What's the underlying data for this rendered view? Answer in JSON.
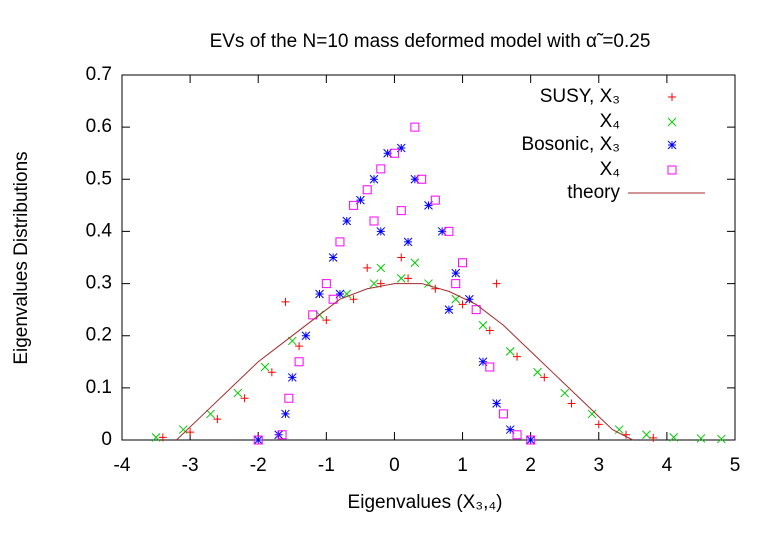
{
  "chart_data": {
    "type": "scatter",
    "title": "EVs of the N=10 mass deformed  model with α̃ =0.25",
    "x_label": "Eigenvalues  (X₃,₄)",
    "y_label": "Eigenvalues Distributions",
    "xlim": [
      -4,
      5
    ],
    "xticks": [
      -4,
      -3,
      -2,
      -1,
      0,
      1,
      2,
      3,
      4,
      5
    ],
    "ylim": [
      0,
      0.7
    ],
    "yticks": [
      0,
      0.1,
      0.2,
      0.3,
      0.4,
      0.5,
      0.6,
      0.7
    ],
    "grid": false,
    "legend": "top-right",
    "series": [
      {
        "name": "SUSY, X₃",
        "color": "#ff0000",
        "marker": "plus",
        "x": [
          -3.4,
          -3.0,
          -2.6,
          -2.2,
          -1.8,
          -1.4,
          -1.0,
          -0.6,
          -0.2,
          0.2,
          0.6,
          1.0,
          1.4,
          1.8,
          2.2,
          2.6,
          3.0,
          3.4,
          3.8,
          -1.6,
          1.5,
          -0.4,
          0.1
        ],
        "values": [
          0.005,
          0.015,
          0.04,
          0.08,
          0.13,
          0.18,
          0.23,
          0.27,
          0.3,
          0.31,
          0.29,
          0.26,
          0.21,
          0.16,
          0.12,
          0.07,
          0.03,
          0.01,
          0.004,
          0.265,
          0.3,
          0.33,
          0.35
        ]
      },
      {
        "name": "X₄",
        "color": "#00cc00",
        "marker": "cross",
        "x": [
          -3.5,
          -3.1,
          -2.7,
          -2.3,
          -1.9,
          -1.5,
          -1.1,
          -0.7,
          -0.3,
          0.1,
          0.5,
          0.9,
          1.3,
          1.7,
          2.1,
          2.5,
          2.9,
          3.3,
          3.7,
          4.1,
          4.5,
          4.8,
          -0.2,
          0.3
        ],
        "values": [
          0.005,
          0.02,
          0.05,
          0.09,
          0.14,
          0.19,
          0.24,
          0.28,
          0.3,
          0.31,
          0.3,
          0.27,
          0.22,
          0.17,
          0.13,
          0.09,
          0.05,
          0.02,
          0.01,
          0.005,
          0.003,
          0.002,
          0.33,
          0.34
        ]
      },
      {
        "name": "Bosonic, X₃",
        "color": "#0000ff",
        "marker": "star",
        "x": [
          -2.0,
          -1.7,
          -1.6,
          -1.5,
          -1.3,
          -1.1,
          -0.9,
          -0.7,
          -0.5,
          -0.3,
          -0.1,
          0.1,
          0.3,
          0.5,
          0.7,
          0.9,
          1.1,
          1.3,
          1.5,
          1.7,
          2.0,
          -0.2,
          0.2,
          0.8,
          -0.8
        ],
        "values": [
          0,
          0.01,
          0.05,
          0.12,
          0.2,
          0.28,
          0.35,
          0.42,
          0.46,
          0.5,
          0.55,
          0.56,
          0.5,
          0.45,
          0.4,
          0.32,
          0.27,
          0.15,
          0.07,
          0.02,
          0,
          0.4,
          0.38,
          0.25,
          0.28
        ]
      },
      {
        "name": "X₄",
        "color": "#ff00ff",
        "marker": "square",
        "x": [
          -2.0,
          -1.65,
          -1.55,
          -1.4,
          -1.2,
          -1.0,
          -0.8,
          -0.6,
          -0.4,
          -0.2,
          0,
          0.3,
          0.4,
          0.6,
          0.8,
          1.0,
          1.2,
          1.4,
          1.6,
          1.8,
          2.0,
          -0.3,
          0.1,
          -0.9,
          0.9
        ],
        "values": [
          0,
          0.01,
          0.08,
          0.15,
          0.24,
          0.3,
          0.38,
          0.45,
          0.48,
          0.52,
          0.55,
          0.6,
          0.5,
          0.46,
          0.4,
          0.34,
          0.25,
          0.14,
          0.05,
          0.01,
          0,
          0.42,
          0.44,
          0.27,
          0.3
        ]
      },
      {
        "name": "theory",
        "color": "#a52a2a",
        "marker": "line",
        "x": [
          -3.2,
          -2.8,
          -2.4,
          -2.0,
          -1.6,
          -1.2,
          -0.8,
          -0.4,
          0,
          0.4,
          0.8,
          1.2,
          1.6,
          2.0,
          2.4,
          2.8,
          3.2,
          3.5
        ],
        "values": [
          0,
          0.05,
          0.1,
          0.15,
          0.19,
          0.23,
          0.27,
          0.29,
          0.3,
          0.3,
          0.285,
          0.26,
          0.22,
          0.17,
          0.12,
          0.07,
          0.02,
          0
        ]
      }
    ]
  }
}
